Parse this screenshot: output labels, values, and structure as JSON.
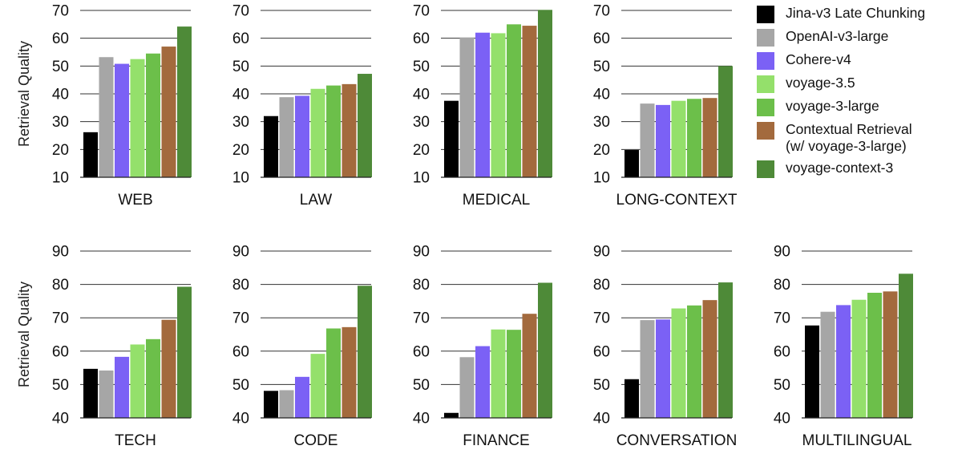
{
  "chart_data": {
    "type": "bar",
    "series": [
      {
        "name": "Jina-v3 Late Chunking",
        "color": "#000000"
      },
      {
        "name": "OpenAI-v3-large",
        "color": "#a6a6a6"
      },
      {
        "name": "Cohere-v4",
        "color": "#7b61f5"
      },
      {
        "name": "voyage-3.5",
        "color": "#94e06b"
      },
      {
        "name": "voyage-3-large",
        "color": "#6cbf4a"
      },
      {
        "name": "Contextual Retrieval\n (w/ voyage-3-large)",
        "color": "#a36a3d"
      },
      {
        "name": "voyage-context-3",
        "color": "#4e8a38"
      }
    ],
    "rows": [
      {
        "ylabel": "Retrieval Quality",
        "ylim": [
          10,
          70
        ],
        "yticks": [
          10,
          20,
          30,
          40,
          50,
          60,
          70
        ],
        "panels": [
          {
            "title": "WEB",
            "values": [
              26.2,
              53.2,
              50.8,
              52.5,
              54.5,
              57.0,
              64.2
            ]
          },
          {
            "title": "LAW",
            "values": [
              32.0,
              38.8,
              39.3,
              41.8,
              43.0,
              43.5,
              47.2
            ]
          },
          {
            "title": "MEDICAL",
            "values": [
              37.5,
              60.3,
              62.0,
              61.8,
              65.0,
              64.5,
              70.2
            ]
          },
          {
            "title": "LONG-CONTEXT",
            "values": [
              19.8,
              36.5,
              36.0,
              37.5,
              38.2,
              38.5,
              50.0
            ]
          }
        ]
      },
      {
        "ylabel": "Retrieval Quality",
        "ylim": [
          40,
          90
        ],
        "yticks": [
          40,
          50,
          60,
          70,
          80,
          90
        ],
        "panels": [
          {
            "title": "TECH",
            "values": [
              54.7,
              54.2,
              58.3,
              62.0,
              63.6,
              69.4,
              79.3
            ]
          },
          {
            "title": "CODE",
            "values": [
              48.1,
              48.3,
              52.3,
              59.2,
              66.8,
              67.2,
              79.6
            ]
          },
          {
            "title": "FINANCE",
            "values": [
              41.5,
              58.2,
              61.5,
              66.5,
              66.4,
              71.2,
              80.5
            ]
          },
          {
            "title": "CONVERSATION",
            "values": [
              51.6,
              69.3,
              69.5,
              72.8,
              73.7,
              75.3,
              80.6
            ]
          },
          {
            "title": "MULTILINGUAL",
            "values": [
              67.7,
              71.8,
              73.8,
              75.4,
              77.5,
              77.9,
              83.2
            ]
          }
        ]
      }
    ]
  }
}
